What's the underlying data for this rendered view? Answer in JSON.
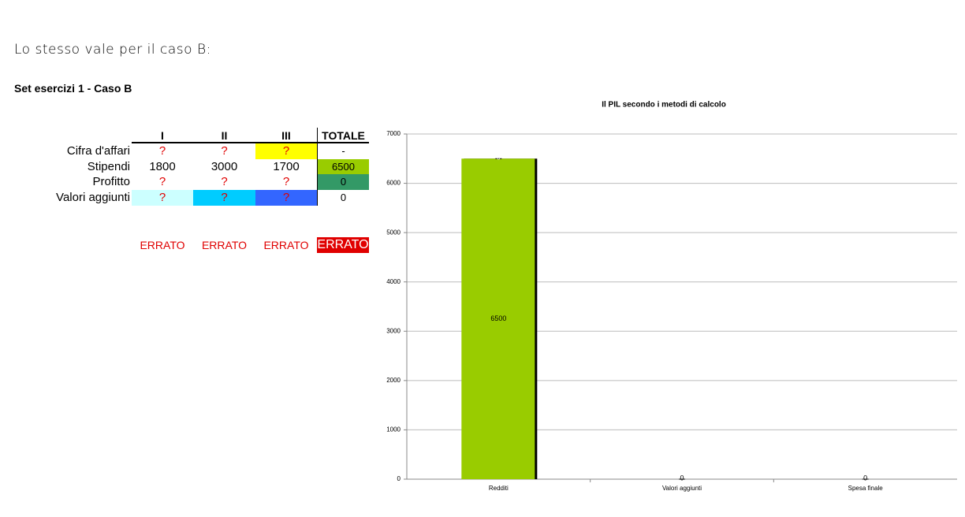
{
  "intro": "Lo stesso vale per il caso B:",
  "heading": "Set esercizi 1 - Caso B",
  "table": {
    "columns": [
      "I",
      "II",
      "III",
      "TOTALE"
    ],
    "rows": [
      {
        "label": "Cifra d'affari",
        "cells": [
          "?",
          "?",
          "?",
          "-"
        ]
      },
      {
        "label": "Stipendi",
        "cells": [
          1800,
          3000,
          1700,
          6500
        ]
      },
      {
        "label": "Profitto",
        "cells": [
          "?",
          "?",
          "?",
          0
        ]
      },
      {
        "label": "Valori aggiunti",
        "cells": [
          "?",
          "?",
          "?",
          0
        ]
      }
    ],
    "verdicts": [
      "ERRATO",
      "ERRATO",
      "ERRATO",
      "ERRATO"
    ]
  },
  "chart_data": {
    "type": "bar",
    "title": "Il PIL secondo i metodi di calcolo",
    "categories": [
      "Redditi",
      "Valori aggiunti",
      "Spesa finale"
    ],
    "series": [
      {
        "color": "#99cc00",
        "values": [
          6500,
          0,
          0
        ]
      },
      {
        "color": "#ffffff",
        "values": [
          0,
          null,
          null
        ]
      }
    ],
    "ylim": [
      0,
      7000
    ],
    "yticks": [
      0,
      1000,
      2000,
      3000,
      4000,
      5000,
      6000,
      7000
    ],
    "grid": true
  }
}
